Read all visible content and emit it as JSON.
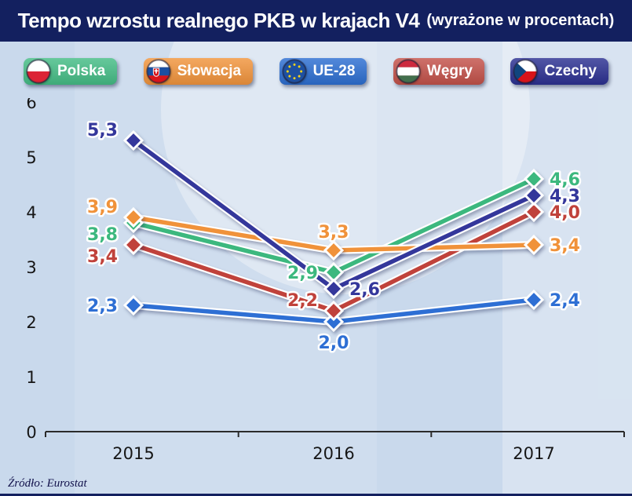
{
  "header": {
    "title": "Tempo wzrostu realnego PKB w krajach V4",
    "subtitle": "(wyrażone w procentach)"
  },
  "legend": [
    {
      "label": "Polska",
      "color": "#45bd86",
      "flag": "poland-flag-icon"
    },
    {
      "label": "Słowacja",
      "color": "#f2953d",
      "flag": "slovakia-flag-icon"
    },
    {
      "label": "UE-28",
      "color": "#2d6fd2",
      "flag": "eu-flag-icon"
    },
    {
      "label": "Węgry",
      "color": "#c4524a",
      "flag": "hungary-flag-icon"
    },
    {
      "label": "Czechy",
      "color": "#2c3192",
      "flag": "czech-flag-icon"
    }
  ],
  "footer": {
    "source": "Źródło: Eurostat"
  },
  "chart_data": {
    "type": "line",
    "title": "Tempo wzrostu realnego PKB w krajach V4 (wyrażone w procentach)",
    "categories": [
      "2015",
      "2016",
      "2017"
    ],
    "series": [
      {
        "name": "Polska",
        "color": "#3cb87e",
        "values": [
          3.8,
          2.9,
          4.6
        ],
        "point_labels": [
          "3,8",
          "2,9",
          "4,6"
        ],
        "label_pos": [
          "left-down",
          "left",
          "right"
        ]
      },
      {
        "name": "Słowacja",
        "color": "#f0923a",
        "values": [
          3.9,
          3.3,
          3.4
        ],
        "point_labels": [
          "3,9",
          "3,3",
          "3,4"
        ],
        "label_pos": [
          "left-up",
          "above",
          "right"
        ]
      },
      {
        "name": "UE-28",
        "color": "#2e6fd4",
        "values": [
          2.3,
          2.0,
          2.4
        ],
        "point_labels": [
          "2,3",
          "2,0",
          "2,4"
        ],
        "label_pos": [
          "left",
          "below",
          "right"
        ]
      },
      {
        "name": "Węgry",
        "color": "#c0423b",
        "values": [
          3.4,
          2.2,
          4.0
        ],
        "point_labels": [
          "3,4",
          "2,2",
          "4,0"
        ],
        "label_pos": [
          "left-down",
          "left-up",
          "right"
        ]
      },
      {
        "name": "Czechy",
        "color": "#34379b",
        "values": [
          5.3,
          2.6,
          4.3
        ],
        "point_labels": [
          "5,3",
          "2,6",
          "4,3"
        ],
        "label_pos": [
          "left-up",
          "right",
          "right"
        ]
      }
    ],
    "xlabel": "",
    "ylabel": "",
    "ylim": [
      0,
      6
    ],
    "yticks": [
      0,
      1,
      2,
      3,
      4,
      5,
      6
    ],
    "grid": false,
    "legend_position": "top",
    "draw_order": [
      2,
      3,
      0,
      1,
      4
    ]
  }
}
